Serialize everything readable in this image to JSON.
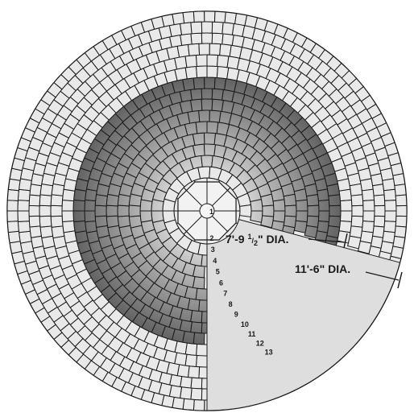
{
  "ring_labels": [
    "1",
    "2",
    "3",
    "4",
    "5",
    "6",
    "7",
    "8",
    "9",
    "10",
    "11",
    "12",
    "13"
  ],
  "dimensions": {
    "inner": {
      "main": "7'-9 ",
      "frac_num": "1",
      "frac_den": "2",
      "suffix": "\" DIA."
    },
    "outer": {
      "text": "11'-6\" DIA."
    }
  },
  "colors": {
    "background": "#ffffff",
    "light_paver": "#e9e9e9",
    "dark_paver": "#7b7b7b",
    "wedge_fill": "#dedede",
    "outline": "#1a1a1a"
  }
}
